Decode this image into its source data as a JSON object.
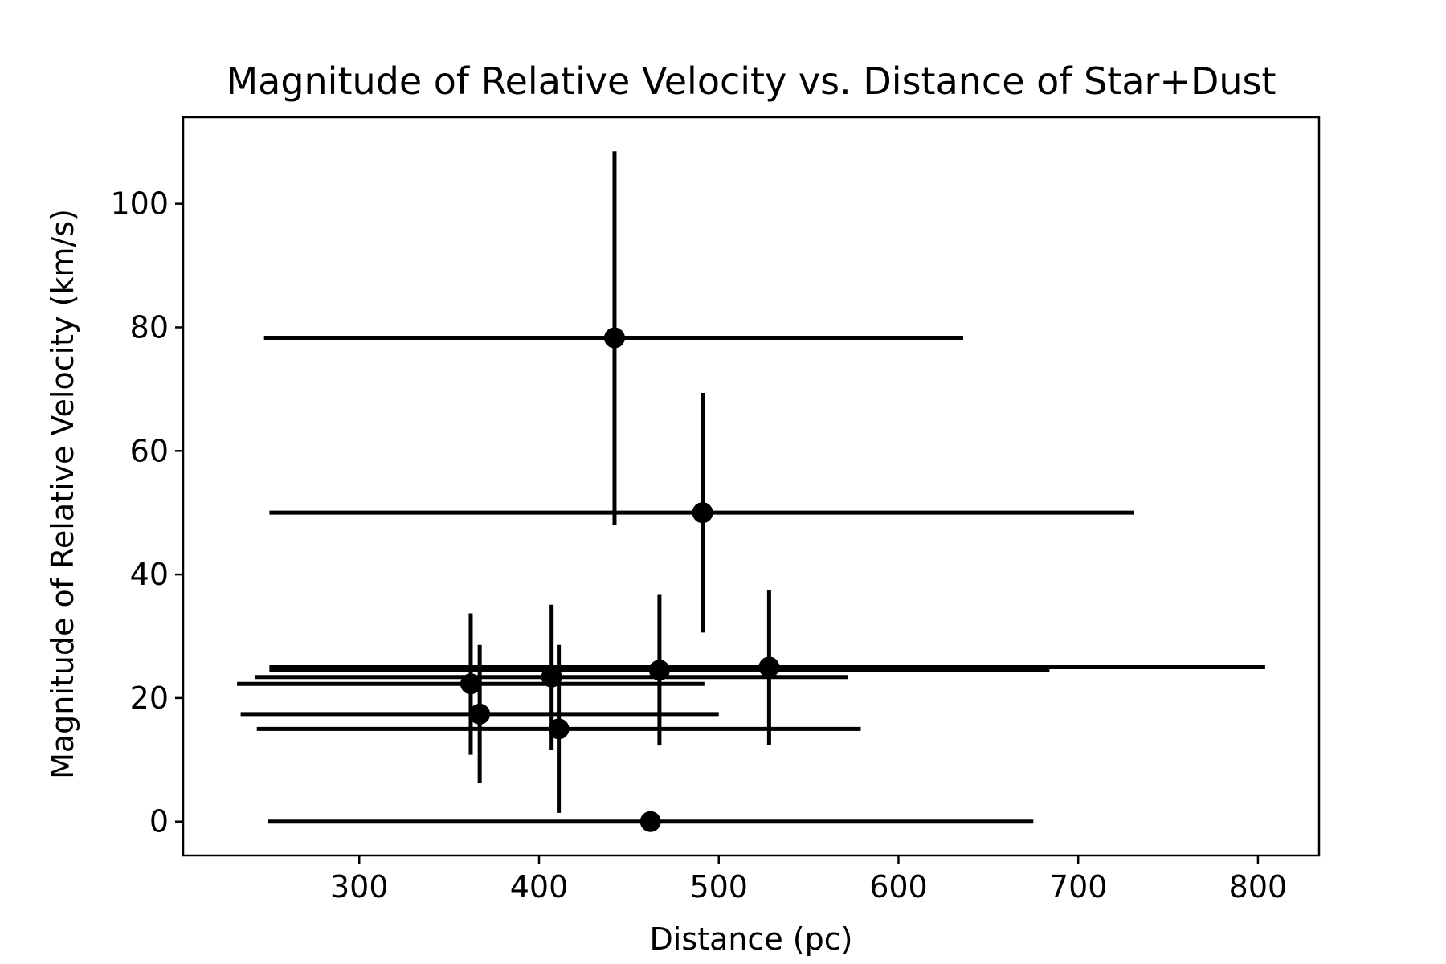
{
  "chart_data": {
    "type": "scatter",
    "title": "Magnitude of Relative Velocity vs. Distance of Star+Dust",
    "xlabel": "Distance (pc)",
    "ylabel": "Magnitude of Relative Velocity (km/s)",
    "xlim": [
      202,
      834
    ],
    "ylim": [
      -5.5,
      114
    ],
    "xticks": [
      300,
      400,
      500,
      600,
      700,
      800
    ],
    "yticks": [
      0,
      20,
      40,
      60,
      80,
      100
    ],
    "grid": false,
    "legend": "none",
    "marker_color": "#000000",
    "points": [
      {
        "x": 442,
        "y": 78.3,
        "xerr_lo": 247,
        "xerr_hi": 636,
        "yerr_lo": 48,
        "yerr_hi": 108.5
      },
      {
        "x": 491,
        "y": 50.0,
        "xerr_lo": 250,
        "xerr_hi": 731,
        "yerr_lo": 30.6,
        "yerr_hi": 69.4
      },
      {
        "x": 528,
        "y": 25.0,
        "xerr_lo": 250,
        "xerr_hi": 804,
        "yerr_lo": 12.4,
        "yerr_hi": 37.5
      },
      {
        "x": 467,
        "y": 24.5,
        "xerr_lo": 250,
        "xerr_hi": 684,
        "yerr_lo": 12.3,
        "yerr_hi": 36.7
      },
      {
        "x": 407,
        "y": 23.4,
        "xerr_lo": 242,
        "xerr_hi": 572,
        "yerr_lo": 11.6,
        "yerr_hi": 35.1
      },
      {
        "x": 362,
        "y": 22.3,
        "xerr_lo": 232,
        "xerr_hi": 492,
        "yerr_lo": 10.8,
        "yerr_hi": 33.7
      },
      {
        "x": 367,
        "y": 17.4,
        "xerr_lo": 234,
        "xerr_hi": 500,
        "yerr_lo": 6.2,
        "yerr_hi": 28.6
      },
      {
        "x": 411,
        "y": 15.0,
        "xerr_lo": 243,
        "xerr_hi": 579,
        "yerr_lo": 1.4,
        "yerr_hi": 28.6
      },
      {
        "x": 462,
        "y": 0.0,
        "xerr_lo": 249,
        "xerr_hi": 675,
        "yerr_lo": 0.0,
        "yerr_hi": 0.0
      }
    ]
  }
}
